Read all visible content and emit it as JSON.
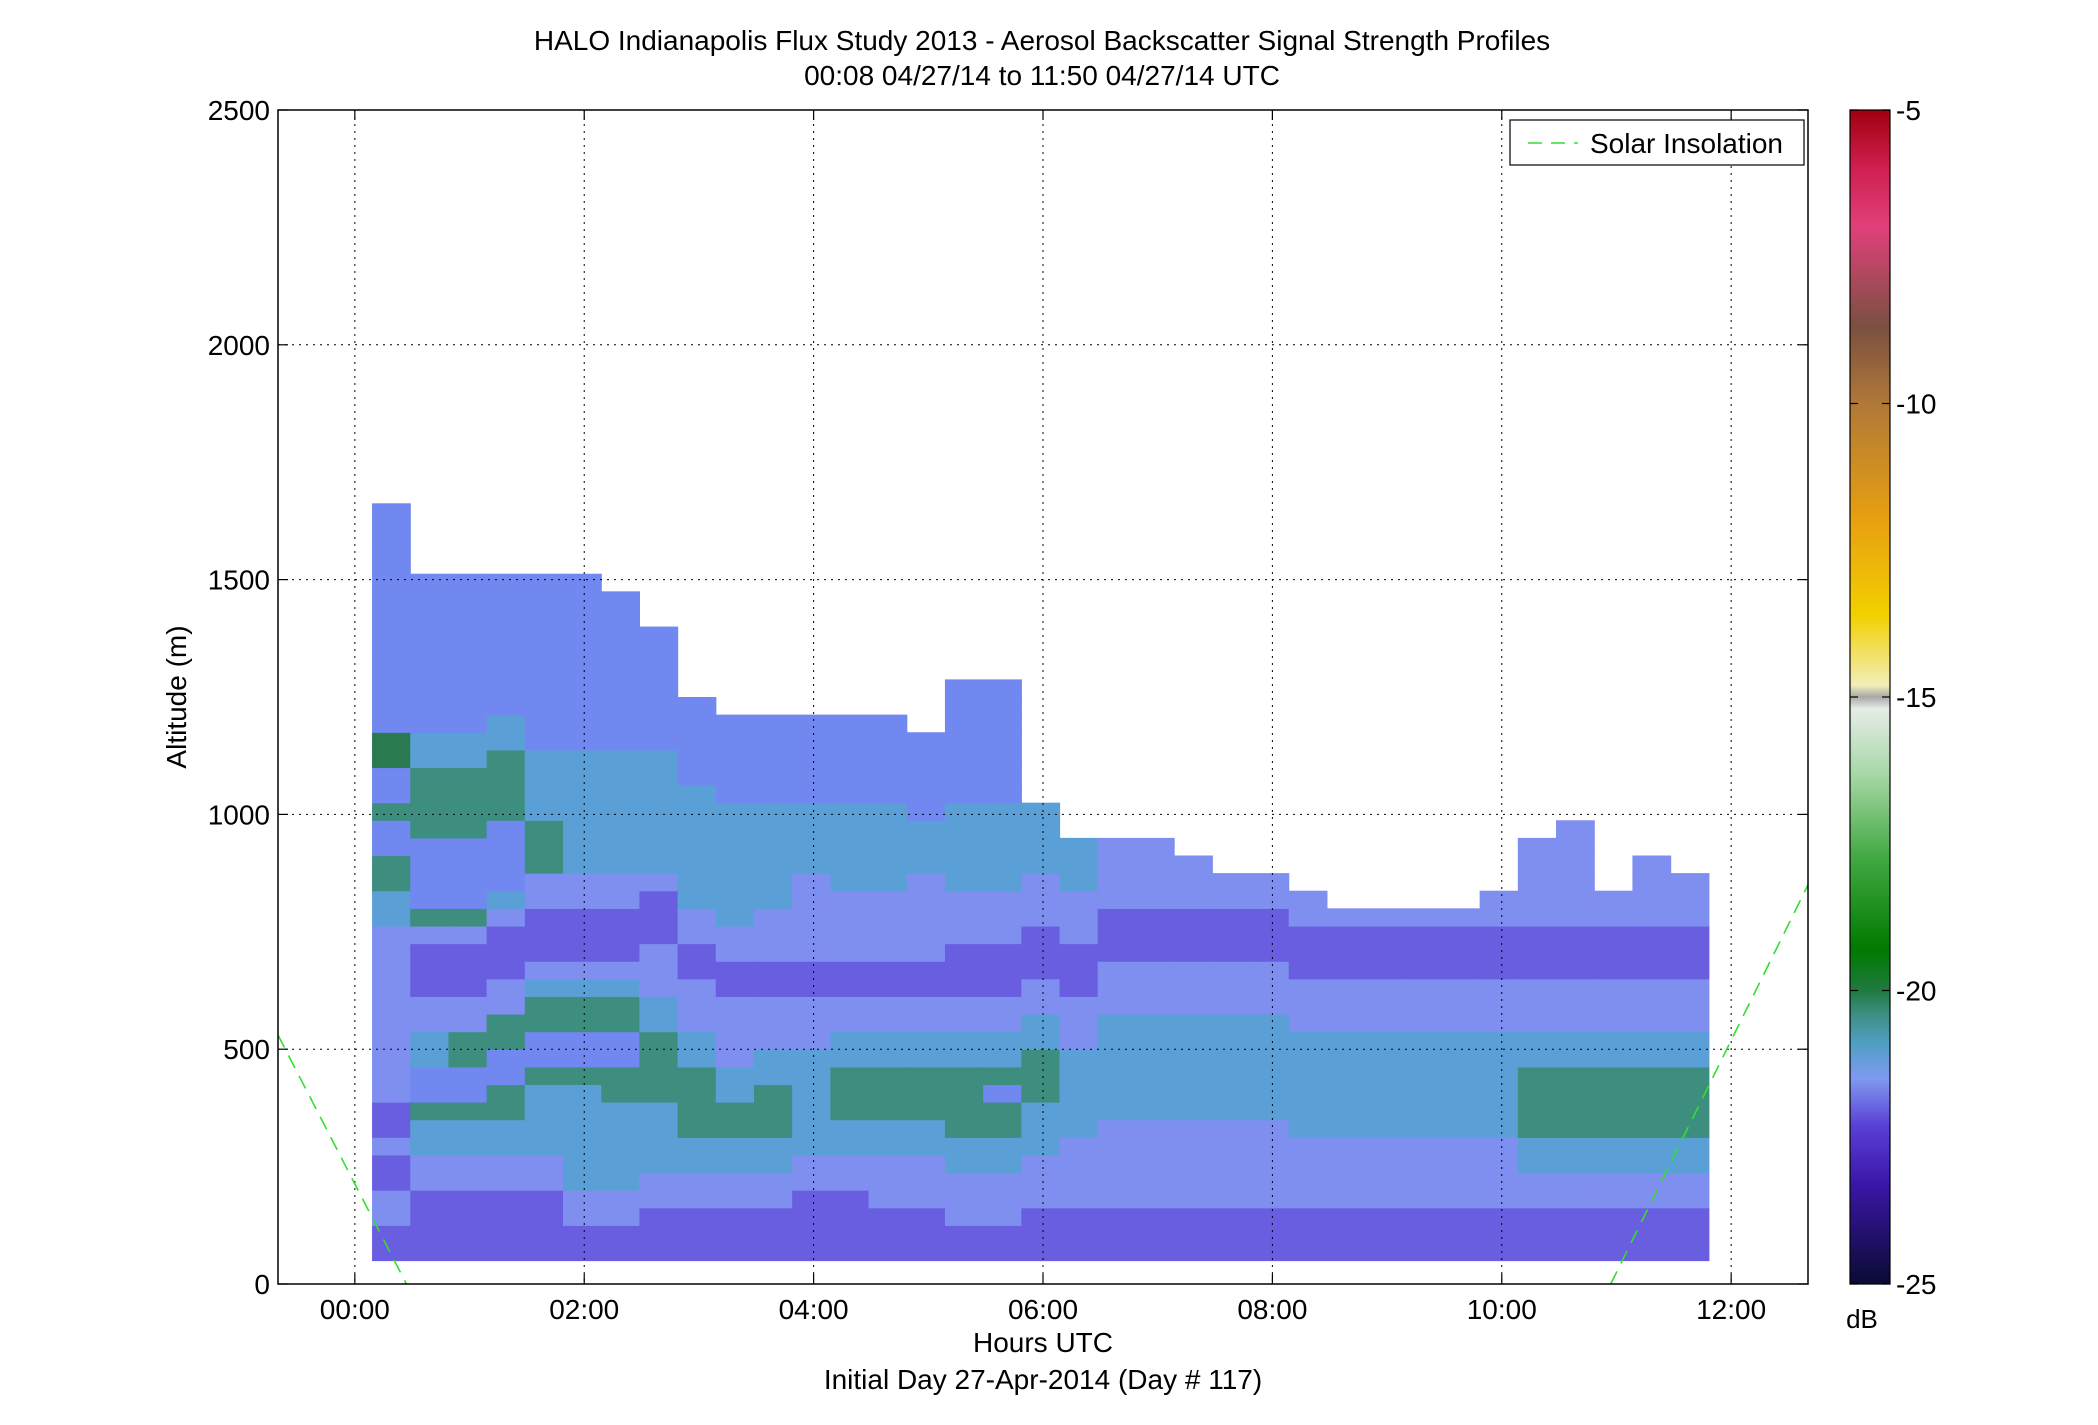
{
  "chart_data": {
    "type": "heatmap",
    "title": "HALO Indianapolis Flux Study 2013 - Aerosol Backscatter Signal Strength Profiles",
    "subtitle": "00:08 04/27/14 to 11:50 04/27/14  UTC",
    "xlabel": "Hours UTC",
    "xlabel2": "Initial Day 27-Apr-2014 (Day # 117)",
    "ylabel": "Altitude (m)",
    "xlim": [
      -0.67,
      12.67
    ],
    "ylim": [
      0,
      2500
    ],
    "x_ticks": [
      0,
      2,
      4,
      6,
      8,
      10,
      12
    ],
    "x_tick_labels": [
      "00:00",
      "02:00",
      "04:00",
      "06:00",
      "08:00",
      "10:00",
      "12:00"
    ],
    "y_ticks": [
      0,
      500,
      1000,
      1500,
      2000,
      2500
    ],
    "y_tick_labels": [
      "0",
      "500",
      "1000",
      "1500",
      "2000",
      "2500"
    ],
    "grid": true,
    "legend": {
      "placement": "top-right",
      "entries": [
        {
          "name": "Solar Insolation",
          "color": "#33dd33",
          "style": "dashed"
        }
      ]
    },
    "colorbar": {
      "unit": "dB",
      "range": [
        -25,
        -5
      ],
      "ticks": [
        -25,
        -20,
        -15,
        -10,
        -5
      ],
      "tick_labels": [
        "-25",
        "-20",
        "-15",
        "-10",
        "-5"
      ],
      "stops": [
        {
          "v": -25,
          "color": "#0b0b33"
        },
        {
          "v": -23.3,
          "color": "#3a16a8"
        },
        {
          "v": -22.3,
          "color": "#5a40d6"
        },
        {
          "v": -21.5,
          "color": "#7f9af0"
        },
        {
          "v": -20.9,
          "color": "#4f9fc4"
        },
        {
          "v": -20.4,
          "color": "#3e8e80"
        },
        {
          "v": -20.0,
          "color": "#1f7a40"
        },
        {
          "v": -19.3,
          "color": "#007a00"
        },
        {
          "v": -17.7,
          "color": "#44aa44"
        },
        {
          "v": -16.3,
          "color": "#a8d8a8"
        },
        {
          "v": -15.2,
          "color": "#e6ece6"
        },
        {
          "v": -15.0,
          "color": "#a8a8a8"
        },
        {
          "v": -14.8,
          "color": "#f2eeb8"
        },
        {
          "v": -13.6,
          "color": "#f2d000"
        },
        {
          "v": -12.0,
          "color": "#e8a010"
        },
        {
          "v": -10.0,
          "color": "#b07838"
        },
        {
          "v": -8.7,
          "color": "#7a5040"
        },
        {
          "v": -7.0,
          "color": "#e0407a"
        },
        {
          "v": -6.0,
          "color": "#d02050"
        },
        {
          "v": -5.0,
          "color": "#a00010"
        }
      ]
    },
    "heatmap": {
      "x_start": 0.15,
      "x_step": 0.333,
      "y_start": 50,
      "y_step": 37.5,
      "x_count": 35,
      "y_count": 44,
      "columns": [
        {
          "top": 1650,
          "c": "BBCCBBCBBCCCCCCCCCCDDEEFFEFFGGFFFFFFFFFFFFFF"
        },
        {
          "top": 1500,
          "c": "BBBBCCDDEFFDDCCBBBCEFFFFEEEEDDFFFFFFFFFFFF"
        },
        {
          "top": 1500,
          "c": "BBBBCCDDEFFEECCBBBCEFFFFEEEEDDFFFFFFFFFFFF"
        },
        {
          "top": 1500,
          "c": "BBBBCCDDEEFFEECCBBBCDFFFFEEEEDDFFFFFFFFFFFF"
        },
        {
          "top": 1500,
          "c": "BBBBCCDDDDEFFEEDCBBBCCEEEDDDDFFFFFFFFFFFF"
        },
        {
          "top": 1500,
          "c": "BBCCDDDDDDEFFEEDCBBBCCDDDDDDDFFFFFFFFFFFF"
        },
        {
          "top": 1450,
          "c": "BBCCDDDDDEEFFEEDCBBBCCDDDDDDDFFFFFFFFFF"
        },
        {
          "top": 1400,
          "c": "BBBCCDDDDEEEEDDCCCBBBCDDDDDDDFFFFFFF"
        },
        {
          "top": 1300,
          "c": "BBBCCDDEEEEDDCCCBBCCDDDDDDDFFFFF"
        },
        {
          "top": 1300,
          "c": "BBBCCDDEEDDCCCCBBCCDDDDDDDFFFFF"
        },
        {
          "top": 1350,
          "c": "BBBCCDDEEEDDCCCBBCCCDDDDDDFFFFF"
        },
        {
          "top": 1350,
          "c": "BBBBCCDDDDDDCCCBBCCCCCDDDDFFFFF"
        },
        {
          "top": 1350,
          "c": "BBBBCCDDEEEDDCCBBCCCCDDDDDFFFFF"
        },
        {
          "top": 1350,
          "c": "BBBCCCDDEEEDDCCBBCCCCDDDDDFFFFF"
        },
        {
          "top": 1350,
          "c": "BBBCCCDDEEEDDCCBBCCCCCDDDFFFFF"
        },
        {
          "top": 1400,
          "c": "BBCCCDDEEEEDDCCBBBCCCDDDDDFFFFFFF"
        },
        {
          "top": 1400,
          "c": "BBCCCDDEEFEDDCCBBBCCCDDDDDFFFFFFF"
        },
        {
          "top": 1250,
          "c": "BBBCCCDDDEEEDDCCBBBCCCDDDD"
        },
        {
          "top": 1200,
          "c": "BBBCCCCDDDDDCCCBBBCCCDDD"
        },
        {
          "top": 1100,
          "c": "BBBCCCCCDDDDDDCCCBBBCCCC"
        },
        {
          "top": 1100,
          "c": "BBBCCCCCDDDDDDCCCBBBCCCC"
        },
        {
          "top": 1050,
          "c": "BBBCCCCCDDDDDDCCCBBBCCC"
        },
        {
          "top": 1000,
          "c": "BBBCCCCCDDDDDDCCCBBBCC"
        },
        {
          "top": 1000,
          "c": "BBBCCCCCDDDDDDCCCBBBCC"
        },
        {
          "top": 1000,
          "c": "BBBCCCCDDDDDDCCCBBBCC"
        },
        {
          "top": 950,
          "c": "BBBCCCCDDDDDDCCCBBBC"
        },
        {
          "top": 950,
          "c": "BBBCCCCDDDDDDCCCBBBC"
        },
        {
          "top": 950,
          "c": "BBBCCCCDDDDDDCCCBBBC"
        },
        {
          "top": 950,
          "c": "BBBCCCCDDDDDDCCCBBBC"
        },
        {
          "top": 1000,
          "c": "BBBCCCCDDDDDDCCCBBBCC"
        },
        {
          "top": 1150,
          "c": "BBBCCDDEEEEDDCCCBBBCCCCC"
        },
        {
          "top": 1200,
          "c": "BBBCCDDEEEEDDCCCBBBCCCCCC"
        },
        {
          "top": 1000,
          "c": "BBBCCDDEEEEDDCCCBBBCC"
        },
        {
          "top": 1100,
          "c": "BBBCCDDEEEEDDCCCBBBCCCC"
        },
        {
          "top": 1050,
          "c": "BBBCCDDEEEEDDCCCBBBCCC"
        }
      ]
    }
  }
}
